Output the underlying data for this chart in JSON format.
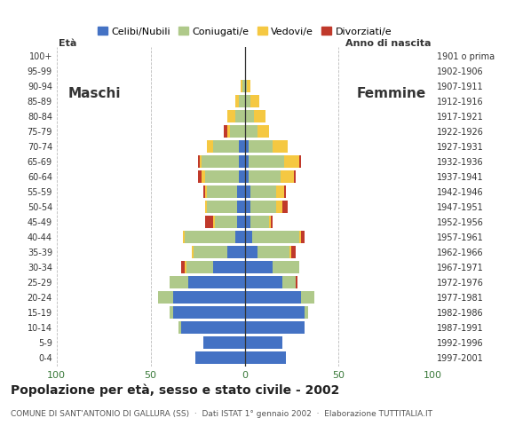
{
  "age_groups": [
    "0-4",
    "5-9",
    "10-14",
    "15-19",
    "20-24",
    "25-29",
    "30-34",
    "35-39",
    "40-44",
    "45-49",
    "50-54",
    "55-59",
    "60-64",
    "65-69",
    "70-74",
    "75-79",
    "80-84",
    "85-89",
    "90-94",
    "95-99",
    "100+"
  ],
  "birth_years": [
    "1997-2001",
    "1992-1996",
    "1987-1991",
    "1982-1986",
    "1977-1981",
    "1972-1976",
    "1967-1971",
    "1962-1966",
    "1957-1961",
    "1952-1956",
    "1947-1951",
    "1942-1946",
    "1937-1941",
    "1932-1936",
    "1927-1931",
    "1922-1926",
    "1917-1921",
    "1912-1916",
    "1907-1911",
    "1902-1906",
    "1901 o prima"
  ],
  "males": {
    "celibi": [
      26,
      22,
      34,
      38,
      38,
      30,
      17,
      9,
      5,
      4,
      4,
      4,
      3,
      3,
      3,
      0,
      0,
      0,
      0,
      0,
      0
    ],
    "coniugati": [
      0,
      0,
      1,
      2,
      8,
      10,
      14,
      18,
      27,
      12,
      16,
      16,
      18,
      20,
      14,
      8,
      5,
      3,
      1,
      0,
      0
    ],
    "vedovi": [
      0,
      0,
      0,
      0,
      0,
      0,
      1,
      1,
      1,
      1,
      1,
      1,
      2,
      1,
      3,
      1,
      4,
      2,
      1,
      0,
      0
    ],
    "divorziati": [
      0,
      0,
      0,
      0,
      0,
      0,
      2,
      0,
      0,
      4,
      0,
      1,
      2,
      1,
      0,
      2,
      0,
      0,
      0,
      0,
      0
    ]
  },
  "females": {
    "nubili": [
      22,
      20,
      32,
      32,
      30,
      20,
      15,
      7,
      4,
      3,
      3,
      3,
      2,
      2,
      2,
      0,
      0,
      0,
      0,
      0,
      0
    ],
    "coniugate": [
      0,
      0,
      0,
      2,
      7,
      7,
      14,
      17,
      25,
      10,
      14,
      14,
      17,
      19,
      13,
      7,
      5,
      3,
      1,
      0,
      0
    ],
    "vedove": [
      0,
      0,
      0,
      0,
      0,
      0,
      0,
      1,
      1,
      1,
      3,
      4,
      7,
      8,
      8,
      6,
      6,
      5,
      2,
      0,
      0
    ],
    "divorziate": [
      0,
      0,
      0,
      0,
      0,
      1,
      0,
      2,
      2,
      1,
      3,
      1,
      1,
      1,
      0,
      0,
      0,
      0,
      0,
      0,
      0
    ]
  },
  "colors": {
    "celibi": "#4472C4",
    "coniugati": "#AFC98A",
    "vedovi": "#F5C842",
    "divorziati": "#C0392B"
  },
  "title": "Popolazione per età, sesso e stato civile - 2002",
  "subtitle": "COMUNE DI SANT'ANTONIO DI GALLURA (SS)  ·  Dati ISTAT 1° gennaio 2002  ·  Elaborazione TUTTITALIA.IT",
  "legend_labels": [
    "Celibi/Nubili",
    "Coniugati/e",
    "Vedovi/e",
    "Divorziati/e"
  ],
  "xlim": 100
}
